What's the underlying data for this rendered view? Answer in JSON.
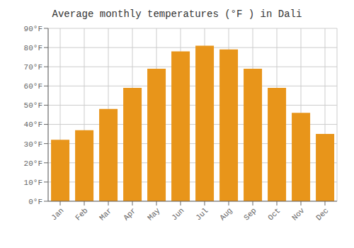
{
  "chart_data": {
    "type": "bar",
    "title": "Average monthly temperatures (°F ) in Dali",
    "categories": [
      "Jan",
      "Feb",
      "Mar",
      "Apr",
      "May",
      "Jun",
      "Jul",
      "Aug",
      "Sep",
      "Oct",
      "Nov",
      "Dec"
    ],
    "values": [
      32,
      37,
      48,
      59,
      69,
      78,
      81,
      79,
      69,
      59,
      46,
      35
    ],
    "color": "#E8951A",
    "ylim": [
      0,
      90
    ],
    "yticks": [
      {
        "value": 0,
        "label": "0°F"
      },
      {
        "value": 10,
        "label": "10°F"
      },
      {
        "value": 20,
        "label": "20°F"
      },
      {
        "value": 30,
        "label": "30°F"
      },
      {
        "value": 40,
        "label": "40°F"
      },
      {
        "value": 50,
        "label": "50°F"
      },
      {
        "value": 60,
        "label": "60°F"
      },
      {
        "value": 70,
        "label": "70°F"
      },
      {
        "value": 80,
        "label": "80°F"
      },
      {
        "value": 90,
        "label": "90°F"
      }
    ],
    "grid": true
  }
}
